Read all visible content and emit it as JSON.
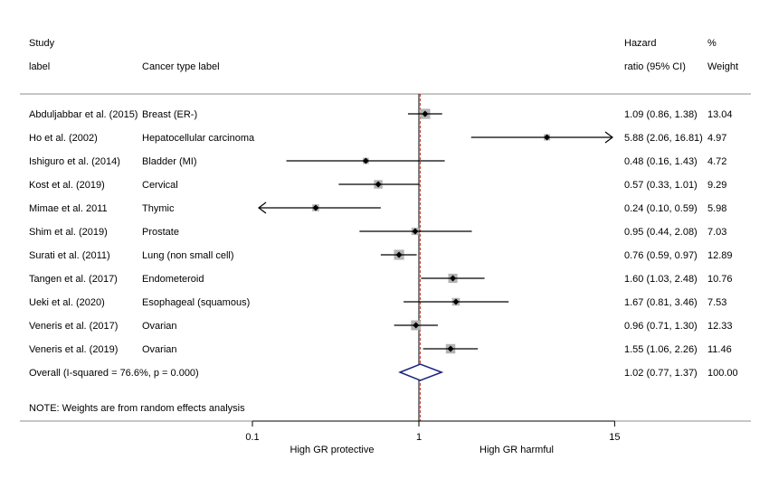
{
  "headers": {
    "study_line1": "Study",
    "study_line2": "label",
    "cancer": "Cancer type label",
    "hr_line1": "Hazard",
    "hr_line2": "ratio (95% CI)",
    "weight_line1": "%",
    "weight_line2": "Weight"
  },
  "note": "NOTE: Weights are from random effects analysis",
  "axis_labels": {
    "left": "High GR protective",
    "right": "High GR harmful"
  },
  "colors": {
    "null_line": "#000000",
    "overall_line": "#c0392b",
    "box": "#b3b3b3",
    "diamond": "#1a237e"
  },
  "chart_data": {
    "type": "forest",
    "x_scale": "log",
    "xticks": [
      0.1,
      1,
      15
    ],
    "xtick_labels": [
      "0.1",
      "1",
      "15"
    ],
    "null_value": 1,
    "studies": [
      {
        "study": "Abduljabbar et al. (2015)",
        "cancer": "Breast (ER-)",
        "hr": 1.09,
        "lo": 0.86,
        "hi": 1.38,
        "ci_text": "1.09 (0.86, 1.38)",
        "weight": "13.04",
        "w": 13.04
      },
      {
        "study": "Ho et al. (2002)",
        "cancer": "Hepatocellular carcinoma",
        "hr": 5.88,
        "lo": 2.06,
        "hi": 16.81,
        "ci_text": "5.88 (2.06, 16.81)",
        "weight": "4.97",
        "w": 4.97
      },
      {
        "study": "Ishiguro et al. (2014)",
        "cancer": "Bladder (MI)",
        "hr": 0.48,
        "lo": 0.16,
        "hi": 1.43,
        "ci_text": "0.48 (0.16, 1.43)",
        "weight": "4.72",
        "w": 4.72
      },
      {
        "study": "Kost et al. (2019)",
        "cancer": "Cervical",
        "hr": 0.57,
        "lo": 0.33,
        "hi": 1.01,
        "ci_text": "0.57 (0.33, 1.01)",
        "weight": "9.29",
        "w": 9.29
      },
      {
        "study": "Mimae et al. 2011",
        "cancer": "Thymic",
        "hr": 0.24,
        "lo": 0.1,
        "hi": 0.59,
        "ci_text": "0.24 (0.10, 0.59)",
        "weight": "5.98",
        "w": 5.98
      },
      {
        "study": "Shim et al. (2019)",
        "cancer": "Prostate",
        "hr": 0.95,
        "lo": 0.44,
        "hi": 2.08,
        "ci_text": "0.95 (0.44, 2.08)",
        "weight": "7.03",
        "w": 7.03
      },
      {
        "study": "Surati et al. (2011)",
        "cancer": "Lung (non small cell)",
        "hr": 0.76,
        "lo": 0.59,
        "hi": 0.97,
        "ci_text": "0.76 (0.59, 0.97)",
        "weight": "12.89",
        "w": 12.89
      },
      {
        "study": "Tangen et al. (2017)",
        "cancer": "Endometeroid",
        "hr": 1.6,
        "lo": 1.03,
        "hi": 2.48,
        "ci_text": "1.60 (1.03, 2.48)",
        "weight": "10.76",
        "w": 10.76
      },
      {
        "study": "Ueki et al. (2020)",
        "cancer": "Esophageal (squamous)",
        "hr": 1.67,
        "lo": 0.81,
        "hi": 3.46,
        "ci_text": "1.67 (0.81, 3.46)",
        "weight": "7.53",
        "w": 7.53
      },
      {
        "study": "Veneris et al. (2017)",
        "cancer": "Ovarian",
        "hr": 0.96,
        "lo": 0.71,
        "hi": 1.3,
        "ci_text": "0.96 (0.71, 1.30)",
        "weight": "12.33",
        "w": 12.33
      },
      {
        "study": "Veneris et al. (2019)",
        "cancer": "Ovarian",
        "hr": 1.55,
        "lo": 1.06,
        "hi": 2.26,
        "ci_text": "1.55 (1.06, 2.26)",
        "weight": "11.46",
        "w": 11.46
      }
    ],
    "overall": {
      "label": "Overall  (I-squared = 76.6%, p = 0.000)",
      "hr": 1.02,
      "lo": 0.77,
      "hi": 1.37,
      "ci_text": "1.02 (0.77, 1.37)",
      "weight": "100.00"
    }
  }
}
